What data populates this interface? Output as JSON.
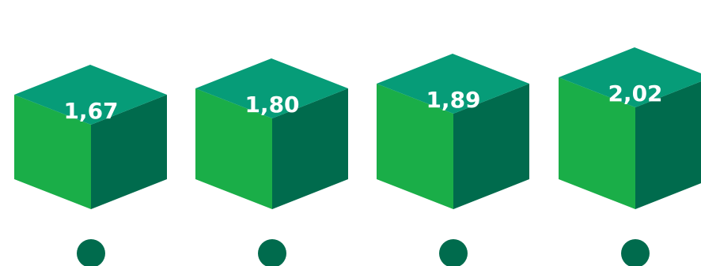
{
  "chart_data": {
    "type": "bar",
    "style": "3d-cube",
    "categories": [
      "",
      "",
      "",
      ""
    ],
    "values": [
      1.67,
      1.8,
      1.89,
      2.02
    ],
    "value_labels": [
      "1,67",
      "1,80",
      "1,89",
      "2,02"
    ],
    "title": "",
    "xlabel": "",
    "ylabel": "",
    "legend": "none",
    "grid": false,
    "colors": {
      "front_face": "#1aae48",
      "top_face": "#069c78",
      "side_face": "#006b4d",
      "marker": "#006b4d",
      "label_text": "#ffffff"
    }
  }
}
